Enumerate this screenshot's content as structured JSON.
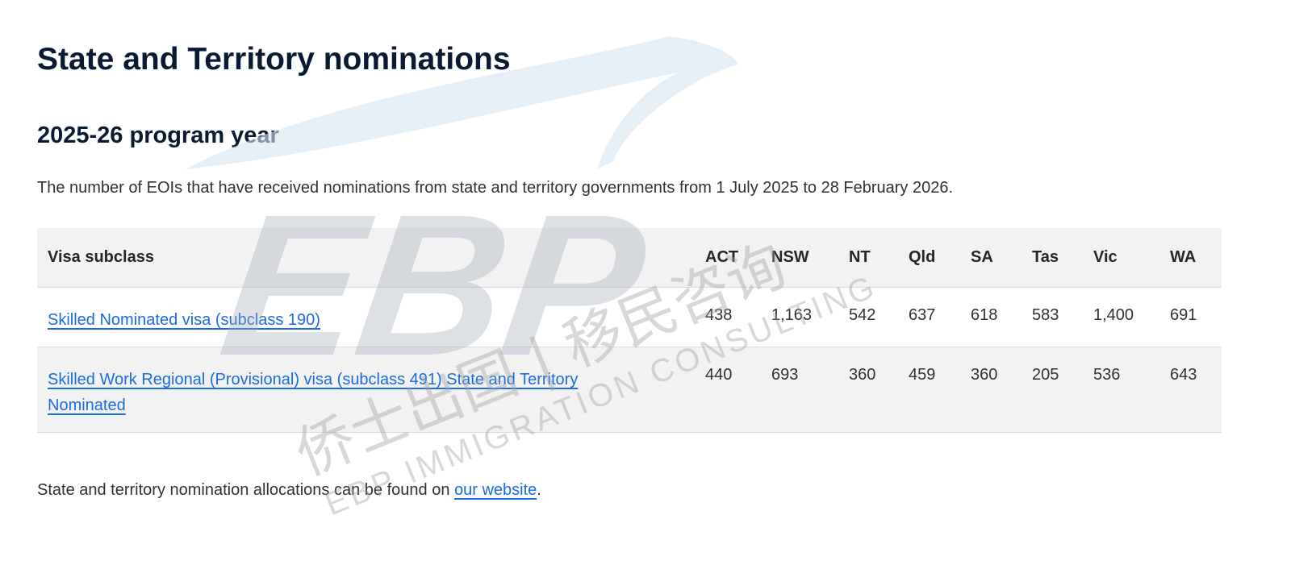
{
  "title": "State and Territory nominations",
  "subtitle": "2025-26 program year",
  "intro": "The number of EOIs that have received nominations from state and territory governments from 1 July 2025 to 28 February 2026.",
  "table": {
    "headers": [
      "Visa subclass",
      "ACT",
      "NSW",
      "NT",
      "Qld",
      "SA",
      "Tas",
      "Vic",
      "WA"
    ],
    "rows": [
      {
        "visa": "Skilled Nominated visa (subclass 190)",
        "values": [
          "438",
          "1,163",
          "542",
          "637",
          "618",
          "583",
          "1,400",
          "691"
        ]
      },
      {
        "visa": "Skilled Work Regional (Provisional) visa (subclass 491) State and Territory Nominated",
        "values": [
          "440",
          "693",
          "360",
          "459",
          "360",
          "205",
          "536",
          "643"
        ]
      }
    ]
  },
  "footer": {
    "text": "State and territory nomination allocations can be found on ",
    "link": "our website",
    "end": "."
  },
  "watermark": {
    "logo": "EBP",
    "chinese": "侨士出国 | 移民咨询",
    "english": "EBP IMMIGRATION CONSULTING"
  },
  "colors": {
    "heading": "#0b1a33",
    "link": "#1a6ce0",
    "header_bg": "#f2f2f2"
  }
}
